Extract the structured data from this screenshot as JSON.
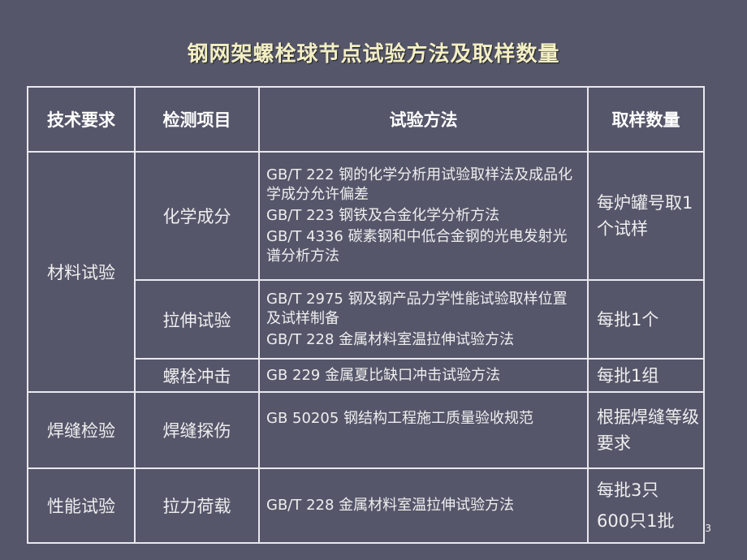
{
  "title": "钢网架螺栓球节点试验方法及取样数量",
  "headers": [
    "技术要求",
    "检测项目",
    "试验方法",
    "取样数量"
  ],
  "rows": {
    "material": {
      "requirement": "材料试验",
      "chem": {
        "item": "化学成分",
        "methods": [
          "GB/T 222 钢的化学分析用试验取样法及成品化学成分允许偏差",
          "GB/T 223 钢铁及合金化学分析方法",
          "GB/T 4336 碳素钢和中低合金钢的光电发射光谱分析方法"
        ],
        "qty": "每炉罐号取1个试样"
      },
      "tensile": {
        "item": "拉伸试验",
        "methods": [
          "GB/T 2975 钢及钢产品力学性能试验取样位置及试样制备",
          "GB/T 228 金属材料室温拉伸试验方法"
        ],
        "qty": "每批1个"
      },
      "impact": {
        "item": "螺栓冲击",
        "methods": [
          "GB 229 金属夏比缺口冲击试验方法"
        ],
        "qty": "每批1组"
      }
    },
    "weld": {
      "requirement": "焊缝检验",
      "item": "焊缝探伤",
      "methods": [
        "GB 50205  钢结构工程施工质量验收规范"
      ],
      "qty": "根据焊缝等级要求"
    },
    "perf": {
      "requirement": "性能试验",
      "item": "拉力荷载",
      "methods": [
        "GB/T 228 金属材料室温拉伸试验方法"
      ],
      "qty": [
        "每批3只",
        "600只1批"
      ]
    }
  },
  "page_number": "3"
}
